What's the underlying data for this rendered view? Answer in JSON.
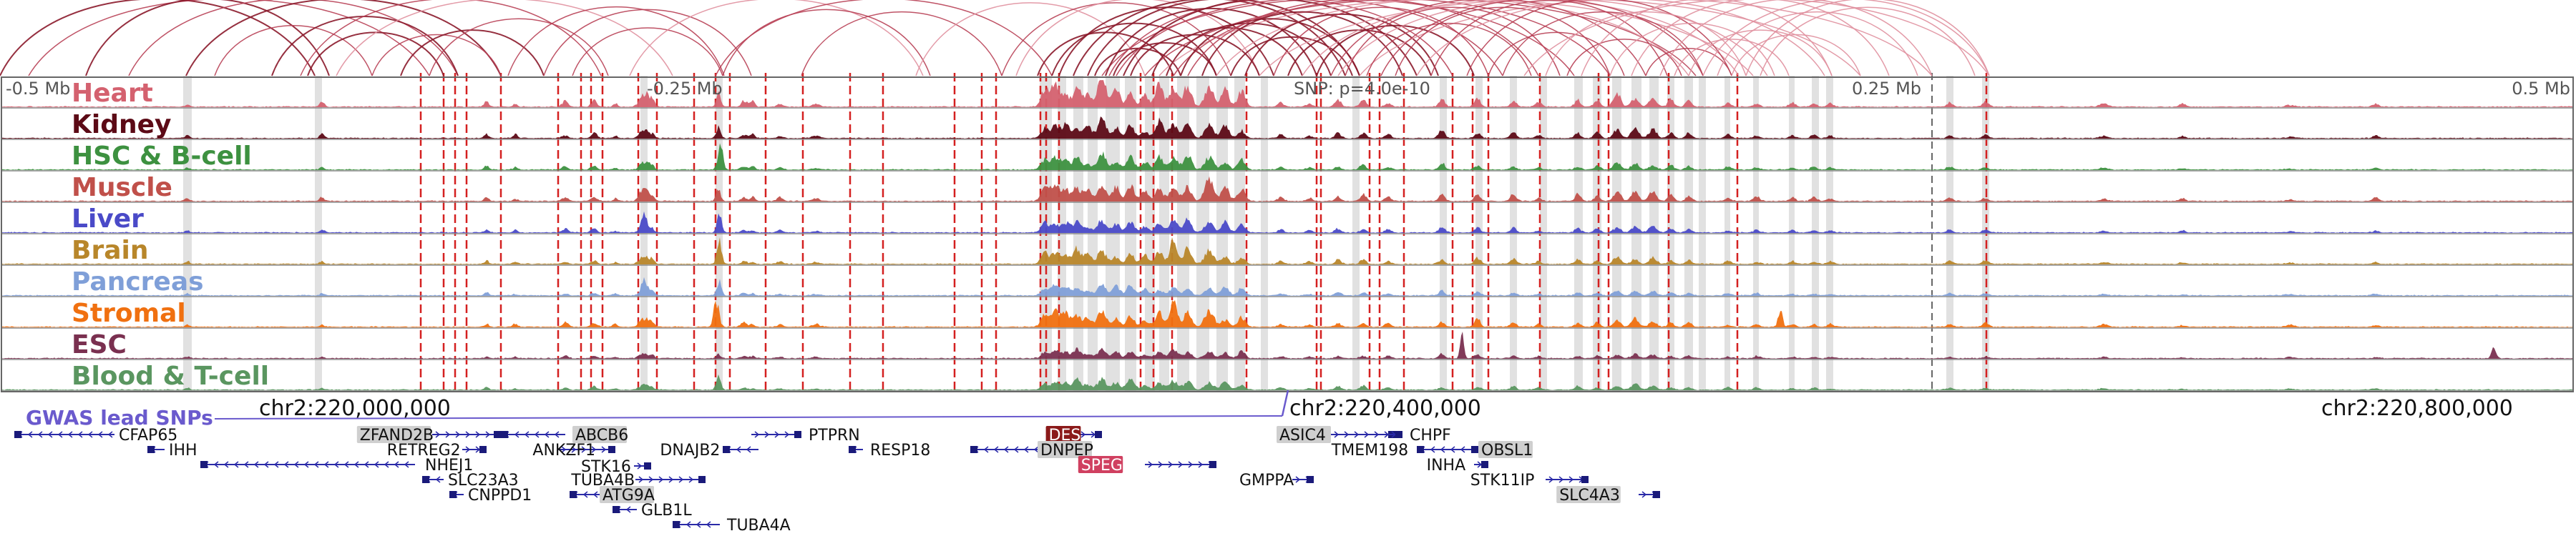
{
  "axis": {
    "left_label": "-0.5 Mb",
    "mid_left_label": "-0.25 Mb",
    "center_label": "SNP: p=4.0e-10",
    "mid_right_label": "0.25 Mb",
    "right_label": "0.5 Mb"
  },
  "tracks": [
    {
      "name": "Heart",
      "color": "#d4616f"
    },
    {
      "name": "Kidney",
      "color": "#5c0a16"
    },
    {
      "name": "HSC & B-cell",
      "color": "#3d9140"
    },
    {
      "name": "Muscle",
      "color": "#c0504a"
    },
    {
      "name": "Liver",
      "color": "#4a4ac8"
    },
    {
      "name": "Brain",
      "color": "#b8862a"
    },
    {
      "name": "Pancreas",
      "color": "#7f9fd8"
    },
    {
      "name": "Stromal",
      "color": "#f07010"
    },
    {
      "name": "ESC",
      "color": "#7a3050"
    },
    {
      "name": "Blood & T-cell",
      "color": "#5a9660"
    }
  ],
  "coordinates": {
    "left": "chr2:220,000,000",
    "center": "chr2:220,400,000",
    "right": "chr2:220,800,000"
  },
  "snp_label": "GWAS lead SNPs",
  "snp_color": "#6a5acd",
  "arc_color": "#8b1a2b",
  "highlight_color": "#d04060",
  "genes": [
    {
      "name": "CFAP65",
      "highlight": "none"
    },
    {
      "name": "IHH",
      "highlight": "none"
    },
    {
      "name": "ZFAND2B",
      "highlight": "gray"
    },
    {
      "name": "ABCB6",
      "highlight": "gray"
    },
    {
      "name": "RETREG2",
      "highlight": "none"
    },
    {
      "name": "ANKZF1",
      "highlight": "none"
    },
    {
      "name": "NHEJ1",
      "highlight": "none"
    },
    {
      "name": "SLC23A3",
      "highlight": "none"
    },
    {
      "name": "CNPPD1",
      "highlight": "none"
    },
    {
      "name": "STK16",
      "highlight": "none"
    },
    {
      "name": "ATG9A",
      "highlight": "gray"
    },
    {
      "name": "TUBA4B",
      "highlight": "none"
    },
    {
      "name": "GLB1L",
      "highlight": "none"
    },
    {
      "name": "TUBA4A",
      "highlight": "none"
    },
    {
      "name": "DNAJB2",
      "highlight": "none"
    },
    {
      "name": "PTPRN",
      "highlight": "none"
    },
    {
      "name": "RESP18",
      "highlight": "none"
    },
    {
      "name": "DES",
      "highlight": "dark"
    },
    {
      "name": "DNPEP",
      "highlight": "gray"
    },
    {
      "name": "SPEG",
      "highlight": "pink"
    },
    {
      "name": "GMPPA",
      "highlight": "none"
    },
    {
      "name": "ASIC4",
      "highlight": "gray"
    },
    {
      "name": "CHPF",
      "highlight": "none"
    },
    {
      "name": "TMEM198",
      "highlight": "none"
    },
    {
      "name": "OBSL1",
      "highlight": "gray"
    },
    {
      "name": "INHA",
      "highlight": "none"
    },
    {
      "name": "STK11IP",
      "highlight": "none"
    },
    {
      "name": "SLC4A3",
      "highlight": "gray"
    }
  ]
}
